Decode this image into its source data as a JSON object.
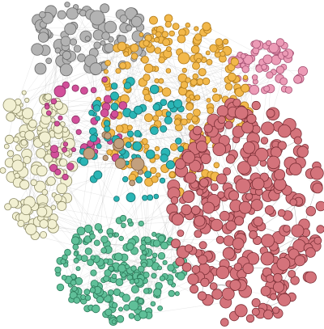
{
  "figure": {
    "kind": "network-graph",
    "background": "#ffffff",
    "edge_color": "#6e6e6e"
  },
  "communities": [
    {
      "key": "gray",
      "fill": "#b3b3b3",
      "stroke": "#6b6b6b",
      "approx_node_count": 90
    },
    {
      "key": "orange",
      "fill": "#f2b84b",
      "stroke": "#b07a1a",
      "approx_node_count": 260
    },
    {
      "key": "pink",
      "fill": "#ec9bb6",
      "stroke": "#a65274",
      "approx_node_count": 60
    },
    {
      "key": "cream",
      "fill": "#f2f0d2",
      "stroke": "#8e8c68",
      "approx_node_count": 160
    },
    {
      "key": "red",
      "fill": "#d4737b",
      "stroke": "#7d3037",
      "approx_node_count": 320
    },
    {
      "key": "green",
      "fill": "#5fbf98",
      "stroke": "#2c7a5a",
      "approx_node_count": 220
    },
    {
      "key": "teal",
      "fill": "#2ab5b5",
      "stroke": "#167070",
      "approx_node_count": 70
    },
    {
      "key": "magenta",
      "fill": "#d24f9a",
      "stroke": "#872f60",
      "approx_node_count": 40
    },
    {
      "key": "tan",
      "fill": "#c2a07e",
      "stroke": "#7a5a3c",
      "approx_node_count": 8
    }
  ]
}
